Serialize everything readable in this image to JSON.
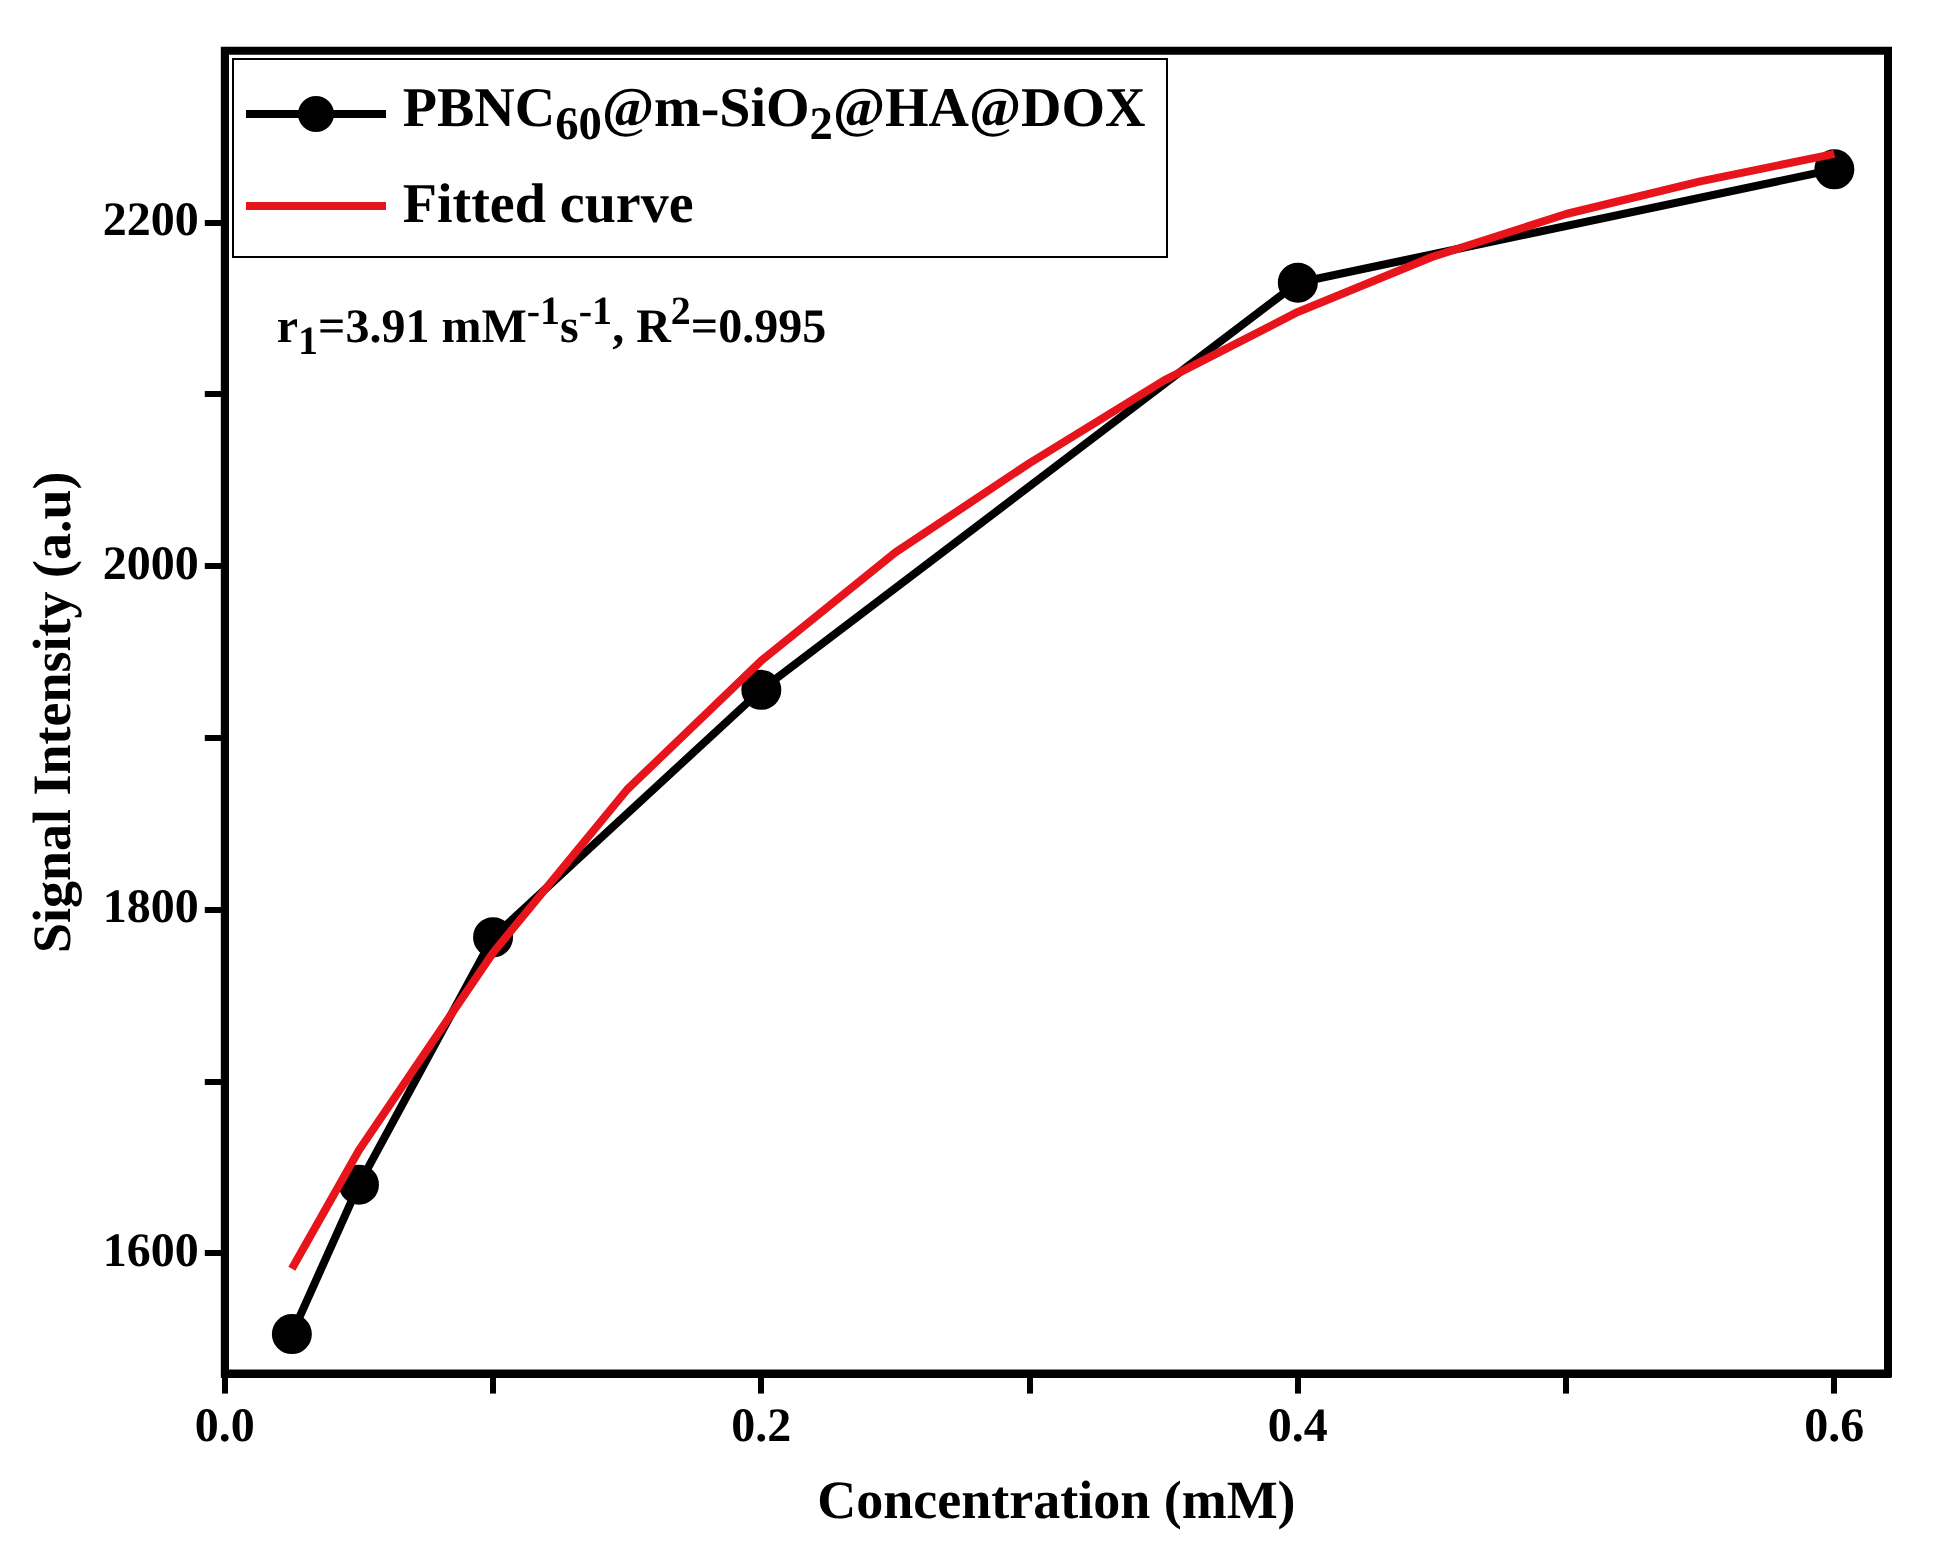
{
  "chart_data": {
    "type": "line",
    "xlabel": "Concentration (mM)",
    "ylabel": "Signal Intensity (a.u)",
    "xlim": [
      0,
      0.62
    ],
    "ylim": [
      1530,
      2300
    ],
    "xticks": [
      {
        "value": 0,
        "label": "0.0"
      },
      {
        "value": 0.1,
        "label": null
      },
      0.2,
      {
        "value": 0.3,
        "label": null
      },
      0.4,
      {
        "value": 0.5,
        "label": null
      },
      0.6
    ],
    "yticks": [
      1600,
      {
        "value": 1700,
        "label": null
      },
      1800,
      {
        "value": 1900,
        "label": null
      },
      2000,
      {
        "value": 2100,
        "label": null
      },
      2200
    ],
    "series": [
      {
        "name": "PBNC$_{60}$@m-SiO$_{2}$@HA@DOX",
        "color": "#000000",
        "marker": "circle",
        "x": [
          0.025,
          0.05,
          0.1,
          0.2,
          0.4,
          0.6
        ],
        "values": [
          1553,
          1640,
          1784,
          1928,
          2165,
          2231
        ]
      },
      {
        "name": "Fitted curve",
        "color": "#e8141c",
        "marker": "none",
        "x": [
          0.025,
          0.05,
          0.1,
          0.15,
          0.2,
          0.25,
          0.3,
          0.35,
          0.4,
          0.45,
          0.5,
          0.55,
          0.6
        ],
        "values": [
          1591,
          1660,
          1775,
          1870,
          1945,
          2008,
          2060,
          2108,
          2148,
          2180,
          2205,
          2224,
          2240
        ]
      }
    ],
    "legend": "top left",
    "grid": false,
    "annotations": [
      "r$_{1}$=3.91 mM$^{-1}$s$^{-1}$, R$^{2}$=0.995"
    ]
  }
}
